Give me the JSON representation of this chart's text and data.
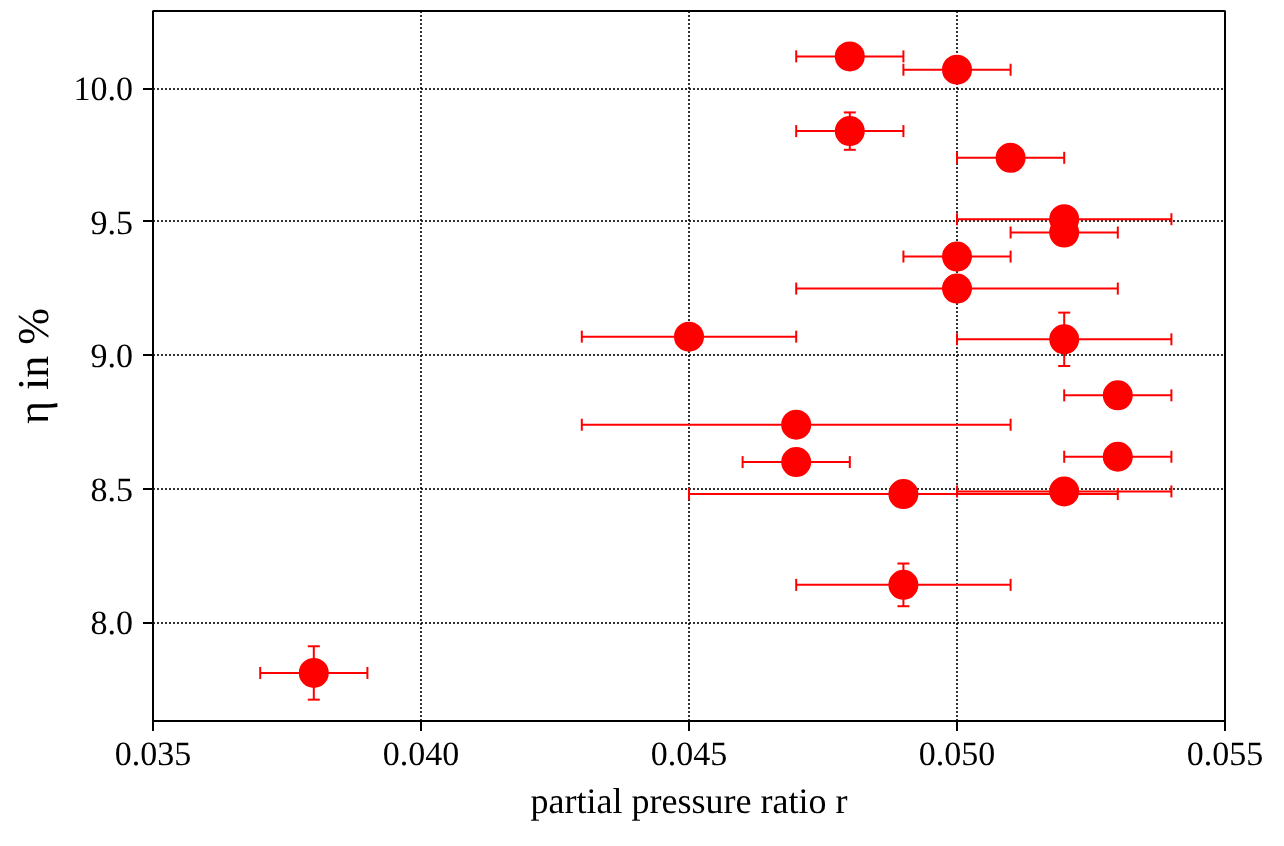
{
  "chart_data": {
    "type": "scatter",
    "xlabel": "partial pressure ratio r",
    "ylabel": "η in %",
    "x": [
      0.048,
      0.05,
      0.048,
      0.051,
      0.052,
      0.052,
      0.05,
      0.05,
      0.045,
      0.052,
      0.053,
      0.047,
      0.053,
      0.047,
      0.052,
      0.049,
      0.049,
      0.038
    ],
    "series": [
      {
        "color": "#ff0000",
        "values": [
          10.12,
          10.07,
          9.84,
          9.74,
          9.51,
          9.46,
          9.37,
          9.25,
          9.07,
          9.06,
          8.85,
          8.74,
          8.62,
          8.6,
          8.49,
          8.48,
          8.14,
          7.81
        ],
        "errors": [
          null,
          null,
          0.07,
          null,
          null,
          null,
          null,
          null,
          null,
          0.1,
          null,
          null,
          null,
          null,
          null,
          null,
          0.08,
          0.1
        ],
        "xerrors": [
          0.001,
          0.001,
          0.001,
          0.001,
          0.002,
          0.001,
          0.001,
          0.003,
          0.002,
          0.002,
          0.001,
          0.004,
          0.001,
          0.001,
          0.002,
          0.004,
          0.002,
          0.001
        ]
      }
    ],
    "xlim": [
      0.035,
      0.055
    ],
    "ylim": [
      7.63,
      10.29
    ],
    "xticks": [
      0.035,
      {
        "value": 0.04,
        "label": "0.040"
      },
      0.045,
      {
        "value": 0.05,
        "label": "0.050"
      },
      0.055
    ],
    "yticks": [
      {
        "value": 8,
        "label": "8.0"
      },
      {
        "value": 8.5,
        "label": "8.5"
      },
      {
        "value": 9,
        "label": "9.0"
      },
      {
        "value": 9.5,
        "label": "9.5"
      },
      {
        "value": 10,
        "label": "10.0"
      }
    ],
    "grid": true,
    "marker": "circle"
  }
}
